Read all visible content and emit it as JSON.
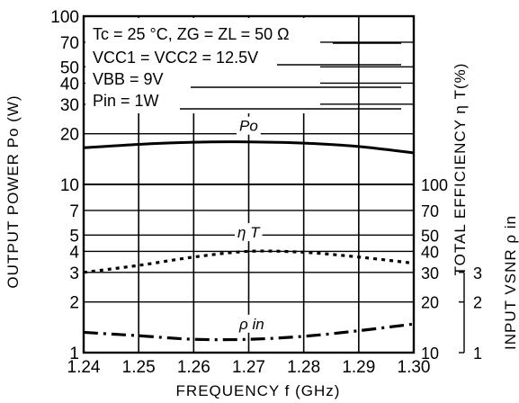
{
  "chart_data": {
    "type": "line",
    "xlabel": "FREQUENCY  f  (GHz)",
    "ylabel_left": "OUTPUT  POWER  Po  (W)",
    "ylabel_right_efficiency": "TOTAL  EFFICIENCY  η T(%)",
    "ylabel_right_vsnr": "INPUT  VSNR  ρ in",
    "x_ticks": [
      "1.24",
      "1.25",
      "1.26",
      "1.27",
      "1.28",
      "1.29",
      "1.30"
    ],
    "xlim": [
      1.24,
      1.3
    ],
    "y_left_ticks": [
      "100",
      "70",
      "50",
      "40",
      "30",
      "20",
      "10",
      "7",
      "5",
      "4",
      "3",
      "2",
      "1"
    ],
    "y_left_scale": "log",
    "ylim_left": [
      1,
      100
    ],
    "y_right_eff_ticks": [
      "100",
      "70",
      "50",
      "40",
      "30",
      "20",
      "10"
    ],
    "ylim_right_eff": [
      10,
      100
    ],
    "y_right_vsnr_ticks": [
      "3",
      "2",
      "1"
    ],
    "ylim_right_vsnr": [
      1,
      3
    ],
    "grid": true,
    "conditions": [
      "Tc = 25 °C, ZG = ZL = 50 Ω",
      "VCC1 = VCC2 = 12.5V",
      "VBB = 9V",
      "Pin = 1W"
    ],
    "series": [
      {
        "name": "Po",
        "axis": "left",
        "style": "solid",
        "x": [
          1.24,
          1.25,
          1.26,
          1.27,
          1.28,
          1.29,
          1.3
        ],
        "y": [
          16.5,
          17.3,
          17.8,
          17.9,
          17.6,
          16.8,
          15.4
        ]
      },
      {
        "name": "η T",
        "axis": "right_efficiency",
        "style": "dotted",
        "x": [
          1.24,
          1.25,
          1.26,
          1.27,
          1.28,
          1.29,
          1.3
        ],
        "y": [
          30,
          33,
          37,
          40,
          39.5,
          37,
          34
        ]
      },
      {
        "name": "ρ in",
        "axis": "right_vsnr",
        "style": "dashdot",
        "x": [
          1.24,
          1.25,
          1.26,
          1.27,
          1.28,
          1.29,
          1.3
        ],
        "y": [
          1.32,
          1.26,
          1.2,
          1.2,
          1.25,
          1.35,
          1.48
        ]
      }
    ]
  }
}
